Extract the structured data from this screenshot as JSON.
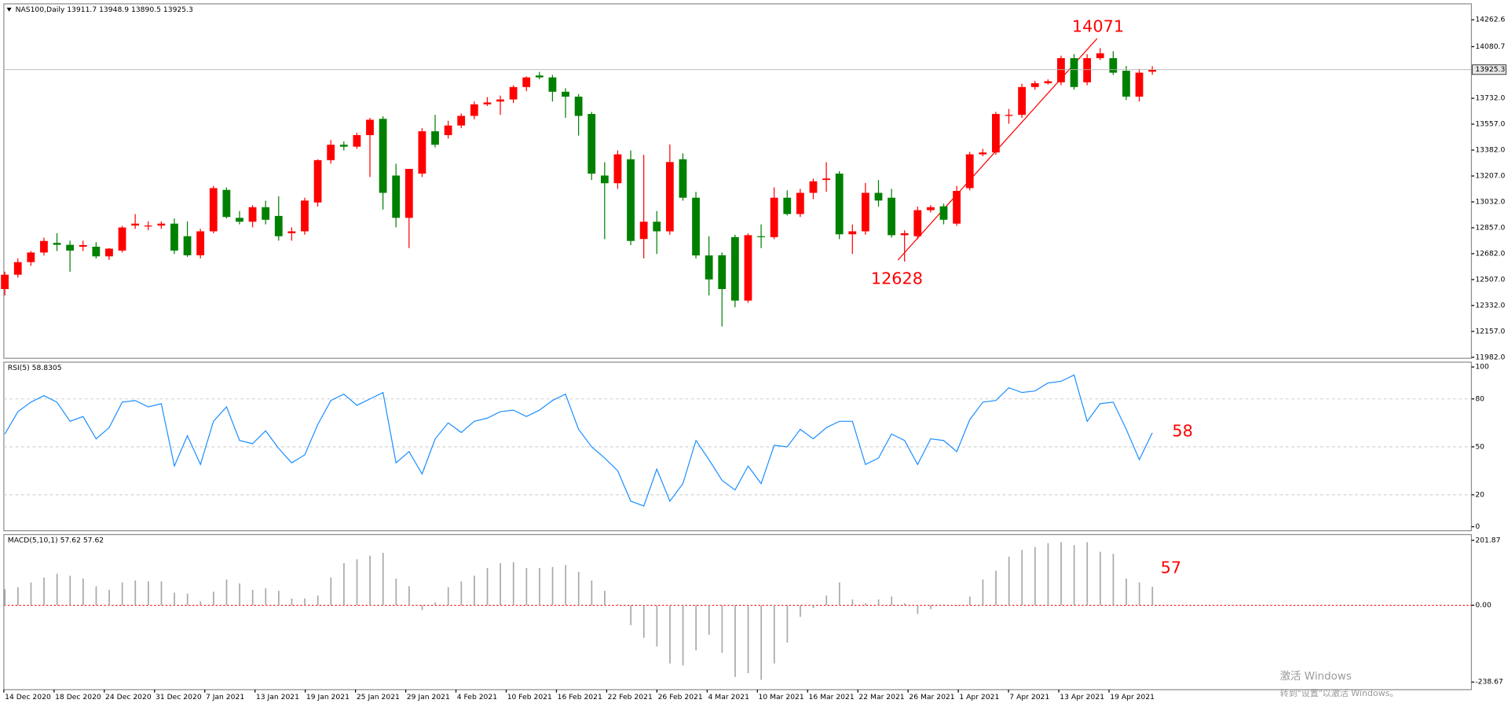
{
  "header": "NAS100,Daily  13911.7 13948.9 13890.5 13925.3",
  "watermark": [
    "激活 Windows",
    "转到\"设置\"以激活 Windows。"
  ],
  "chart_data": [
    {
      "type": "candlestick",
      "categories": [
        "14 Dec 2020",
        null,
        null,
        null,
        "18 Dec 2020",
        null,
        null,
        null,
        "24 Dec 2020",
        null,
        null,
        null,
        "31 Dec 2020",
        null,
        null,
        null,
        "7 Jan 2021",
        null,
        null,
        null,
        "13 Jan 2021",
        null,
        null,
        null,
        "19 Jan 2021",
        null,
        null,
        null,
        "25 Jan 2021",
        null,
        null,
        null,
        "29 Jan 2021",
        null,
        null,
        null,
        "4 Feb 2021",
        null,
        null,
        null,
        "10 Feb 2021",
        null,
        null,
        null,
        "16 Feb 2021",
        null,
        null,
        null,
        "22 Feb 2021",
        null,
        null,
        null,
        "26 Feb 2021",
        null,
        null,
        null,
        "4 Mar 2021",
        null,
        null,
        null,
        "10 Mar 2021",
        null,
        null,
        null,
        "16 Mar 2021",
        null,
        null,
        null,
        "22 Mar 2021",
        null,
        null,
        null,
        "26 Mar 2021",
        null,
        null,
        null,
        "1 Apr 2021",
        null,
        null,
        null,
        "7 Apr 2021",
        null,
        null,
        null,
        "13 Apr 2021",
        null,
        null,
        null,
        "19 Apr 2021"
      ],
      "open": [
        12443,
        12540,
        12625,
        12690,
        12755,
        12742,
        12729,
        12729,
        12664,
        12703,
        12872,
        12866,
        12872,
        12885,
        12800,
        12671,
        12833,
        13113,
        12924,
        12898,
        12996,
        12937,
        12820,
        12833,
        13028,
        13314,
        13418,
        13405,
        13483,
        13593,
        13210,
        12924,
        13223,
        13509,
        13483,
        13548,
        13613,
        13691,
        13710,
        13724,
        13808,
        13886,
        13873,
        13776,
        13743,
        13626,
        13210,
        13158,
        13320,
        12781,
        12898,
        12833,
        13320,
        13060,
        12670,
        12671,
        12794,
        12365,
        12800,
        12794,
        13060,
        12950,
        13093,
        13180,
        13223,
        12813,
        12833,
        13093,
        13060,
        12807,
        12800,
        12976,
        13002,
        12885,
        13125,
        13353,
        13366,
        13613,
        13620,
        13808,
        13834,
        13840,
        14003,
        13840,
        14003,
        14003,
        13918,
        13743,
        13911.7
      ],
      "high": [
        12560,
        12650,
        12700,
        12790,
        12820,
        12770,
        12770,
        12760,
        12720,
        12870,
        12950,
        12900,
        12900,
        12920,
        12900,
        12850,
        13140,
        13130,
        12970,
        13010,
        13040,
        13070,
        12860,
        13060,
        13320,
        13450,
        13440,
        13500,
        13600,
        13610,
        13290,
        13250,
        13530,
        13620,
        13580,
        13630,
        13710,
        13740,
        13750,
        13820,
        13880,
        13910,
        13890,
        13800,
        13760,
        13640,
        13300,
        13380,
        13380,
        13350,
        12970,
        13420,
        13360,
        13100,
        12800,
        12690,
        12810,
        12820,
        12880,
        13130,
        13110,
        13120,
        13190,
        13300,
        13240,
        12880,
        13160,
        13180,
        13120,
        12840,
        13000,
        13010,
        13020,
        13140,
        13370,
        13390,
        13640,
        13660,
        13830,
        13850,
        13860,
        14020,
        14030,
        14030,
        14071,
        14050,
        13950,
        13930,
        13948.9
      ],
      "low": [
        12400,
        12520,
        12600,
        12670,
        12700,
        12560,
        12700,
        12650,
        12640,
        12690,
        12850,
        12840,
        12850,
        12680,
        12660,
        12650,
        12820,
        12920,
        12880,
        12860,
        12880,
        12770,
        12770,
        12810,
        13000,
        13290,
        13380,
        13390,
        13200,
        12980,
        12860,
        12720,
        13200,
        13400,
        13460,
        13530,
        13590,
        13680,
        13620,
        13700,
        13780,
        13860,
        13710,
        13600,
        13480,
        13180,
        12780,
        13120,
        12740,
        12650,
        12680,
        12810,
        13040,
        12650,
        12400,
        12190,
        12320,
        12350,
        12720,
        12780,
        12940,
        12930,
        13050,
        13100,
        12780,
        12680,
        12810,
        13000,
        12790,
        12628,
        12780,
        12960,
        12880,
        12870,
        13110,
        13340,
        13350,
        13560,
        13600,
        13790,
        13825,
        13820,
        13790,
        13820,
        13990,
        13890,
        13720,
        13710,
        13890.5
      ],
      "close": [
        12540,
        12625,
        12690,
        12768,
        12742,
        12703,
        12740,
        12664,
        12716,
        12859,
        12885,
        12872,
        12885,
        12703,
        12671,
        12833,
        13125,
        12930,
        12898,
        12996,
        12911,
        12800,
        12833,
        13041,
        13314,
        13418,
        13405,
        13483,
        13587,
        13093,
        12924,
        13255,
        13509,
        13418,
        13548,
        13613,
        13691,
        13704,
        13724,
        13808,
        13873,
        13873,
        13776,
        13743,
        13613,
        13223,
        13158,
        13353,
        12768,
        12898,
        12833,
        13301,
        13060,
        12670,
        12508,
        12443,
        12365,
        12807,
        12794,
        13060,
        12950,
        13093,
        13171,
        13190,
        12813,
        12833,
        13093,
        13041,
        12807,
        12820,
        12976,
        12996,
        12911,
        13106,
        13353,
        13366,
        13626,
        13620,
        13808,
        13834,
        13847,
        14003,
        13808,
        14003,
        14036,
        13905,
        13743,
        13905,
        13925.3
      ],
      "up_color": "#ff0000",
      "down_color": "#008000",
      "ylim": [
        11975,
        14370
      ],
      "yticks": [
        14262.6,
        14080.7,
        {
          "value": 13732,
          "label": "13732.0"
        },
        {
          "value": 13557,
          "label": "13557.0"
        },
        {
          "value": 13382,
          "label": "13382.0"
        },
        {
          "value": 13207,
          "label": "13207.0"
        },
        {
          "value": 13032,
          "label": "13032.0"
        },
        {
          "value": 12857,
          "label": "12857.0"
        },
        {
          "value": 12682,
          "label": "12682.0"
        },
        {
          "value": 12507,
          "label": "12507.0"
        },
        {
          "value": 12332,
          "label": "12332.0"
        },
        {
          "value": 12157,
          "label": "12157.0"
        },
        {
          "value": 11982,
          "label": "11982.0"
        }
      ],
      "annotations": [
        "14071",
        "12628"
      ]
    },
    {
      "type": "line",
      "title": "RSI(5) 58.8305",
      "color": "#1e90ff",
      "values": [
        58,
        72,
        78,
        82,
        78,
        66,
        69,
        55,
        62,
        78,
        79,
        75,
        77,
        38,
        57,
        39,
        66,
        75,
        54,
        52,
        60,
        49,
        40,
        45,
        64,
        79,
        83,
        76,
        80,
        84,
        40,
        47,
        33,
        55,
        65,
        59,
        66,
        68,
        72,
        73,
        69,
        73,
        79,
        83,
        61,
        50,
        43,
        35,
        16,
        13,
        36,
        16,
        27,
        54,
        42,
        29,
        23,
        38,
        27,
        51,
        50,
        61,
        55,
        62,
        66,
        66,
        39,
        43,
        58,
        54,
        39,
        55,
        54,
        47,
        67,
        78,
        79,
        87,
        84,
        85,
        90,
        91,
        95,
        66,
        77,
        78,
        61,
        42,
        58.8305
      ],
      "ylim": [
        -2.5,
        103
      ],
      "yticks": [
        0,
        20,
        50,
        80,
        100
      ],
      "annotations": [
        "58"
      ]
    },
    {
      "type": "bar",
      "title": "MACD(5,10,1) 57.62 57.62",
      "color": "#a9a9a9",
      "values": [
        50,
        56,
        71,
        86,
        98,
        92,
        83,
        59,
        48,
        71,
        77,
        74,
        74,
        39,
        36,
        12,
        42,
        80,
        68,
        48,
        53,
        45,
        21,
        21,
        30,
        86,
        131,
        143,
        154,
        163,
        83,
        59,
        -15,
        9,
        56,
        74,
        92,
        116,
        131,
        134,
        116,
        116,
        119,
        125,
        104,
        77,
        45,
        3,
        -62,
        -101,
        -128,
        -181,
        -187,
        -140,
        -92,
        -148,
        -223,
        -211,
        -232,
        -181,
        -116,
        -36,
        -9,
        30,
        71,
        18,
        6,
        18,
        27,
        6,
        -27,
        -12,
        3,
        -3,
        27,
        80,
        107,
        151,
        172,
        181,
        193,
        196,
        187,
        196,
        166,
        160,
        83,
        71,
        57.62
      ],
      "ylim": [
        -262.4,
        219.7
      ],
      "yticks": [
        201.87,
        {
          "value": 0,
          "label": "0.00"
        },
        -238.67
      ],
      "annotations": [
        "57"
      ]
    }
  ]
}
